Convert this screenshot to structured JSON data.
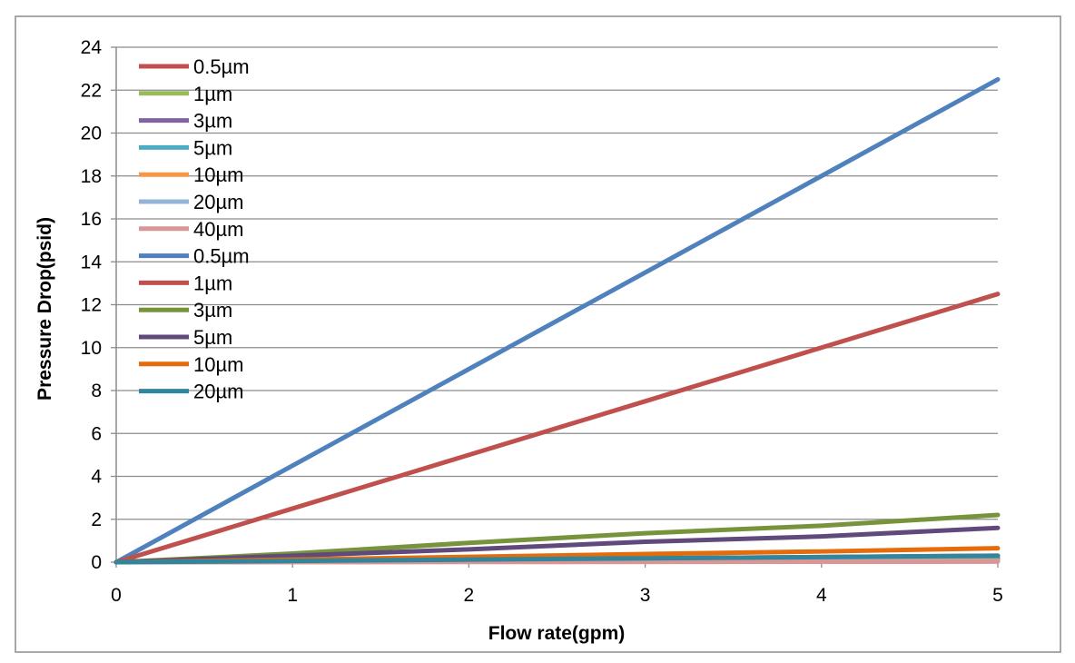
{
  "chart_data": {
    "type": "line",
    "title": "",
    "xlabel": "Flow rate(gpm)",
    "ylabel": "Pressure Drop(psid)",
    "xlim": [
      0,
      5
    ],
    "ylim": [
      0,
      24
    ],
    "x_ticks": [
      "0",
      "1",
      "2",
      "3",
      "4",
      "5"
    ],
    "y_ticks": [
      "0",
      "2",
      "4",
      "6",
      "8",
      "10",
      "12",
      "14",
      "16",
      "18",
      "20",
      "22",
      "24"
    ],
    "grid": "horizontal",
    "legend_position": "top-left",
    "x": [
      0,
      1,
      2,
      3,
      4,
      5
    ],
    "series": [
      {
        "name": "0.5µm",
        "color": "#c0504d",
        "values": [
          0,
          0.06,
          0.12,
          0.18,
          0.24,
          0.3
        ]
      },
      {
        "name": "1µm",
        "color": "#9bbb59",
        "values": [
          0,
          0.04,
          0.08,
          0.12,
          0.16,
          0.2
        ]
      },
      {
        "name": "3µm",
        "color": "#8064a2",
        "values": [
          0,
          0.03,
          0.06,
          0.09,
          0.12,
          0.15
        ]
      },
      {
        "name": "5µm",
        "color": "#4bacc6",
        "values": [
          0,
          0.02,
          0.04,
          0.06,
          0.08,
          0.1
        ]
      },
      {
        "name": "10µm",
        "color": "#f79646",
        "values": [
          0,
          0.015,
          0.03,
          0.045,
          0.06,
          0.075
        ]
      },
      {
        "name": "20µm",
        "color": "#95b3d7",
        "values": [
          0,
          0.01,
          0.02,
          0.03,
          0.04,
          0.05
        ]
      },
      {
        "name": "40µm",
        "color": "#d99694",
        "values": [
          0,
          0.005,
          0.01,
          0.015,
          0.02,
          0.025
        ]
      },
      {
        "name": "0.5µm",
        "color": "#4f81bd",
        "values": [
          0,
          4.5,
          9.0,
          13.5,
          18.0,
          22.5
        ]
      },
      {
        "name": "1µm",
        "color": "#c0504d",
        "values": [
          0,
          2.5,
          5.0,
          7.5,
          10.0,
          12.5
        ]
      },
      {
        "name": "3µm",
        "color": "#77933c",
        "values": [
          0,
          0.4,
          0.9,
          1.35,
          1.7,
          2.2
        ]
      },
      {
        "name": "5µm",
        "color": "#604a7b",
        "values": [
          0,
          0.3,
          0.6,
          0.95,
          1.2,
          1.6
        ]
      },
      {
        "name": "10µm",
        "color": "#e46c0a",
        "values": [
          0,
          0.12,
          0.25,
          0.38,
          0.5,
          0.65
        ]
      },
      {
        "name": "20µm",
        "color": "#31859c",
        "values": [
          0,
          0.06,
          0.12,
          0.18,
          0.24,
          0.3
        ]
      }
    ]
  }
}
